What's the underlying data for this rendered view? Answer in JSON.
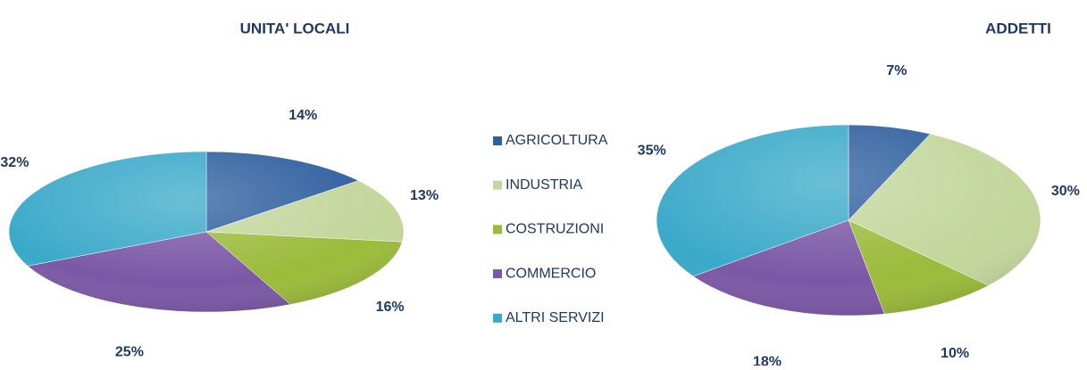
{
  "chart_data": [
    {
      "type": "pie",
      "title": "UNITA' LOCALI",
      "values": [
        14,
        13,
        16,
        25,
        32
      ],
      "value_labels": [
        "14%",
        "13%",
        "16%",
        "25%",
        "32%"
      ]
    },
    {
      "type": "pie",
      "title": "ADDETTI",
      "values": [
        7,
        30,
        10,
        18,
        35
      ],
      "value_labels": [
        "7%",
        "30%",
        "10%",
        "18%",
        "35%"
      ]
    }
  ],
  "legend": {
    "categories": [
      "AGRICOLTURA",
      "INDUSTRIA",
      "COSTRUZIONI",
      "COMMERCIO",
      "ALTRI SERVIZI"
    ],
    "colors": [
      "#2e5f9e",
      "#c3d69b",
      "#9bbb3a",
      "#7b58a6",
      "#3aa9c9"
    ]
  }
}
